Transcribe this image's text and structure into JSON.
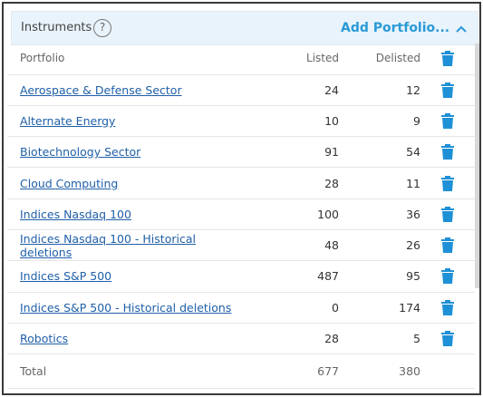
{
  "header": {
    "title": "Instruments",
    "help": "?",
    "add_label": "Add Portfolio..."
  },
  "table": {
    "columns": {
      "portfolio": "Portfolio",
      "listed": "Listed",
      "delisted": "Delisted"
    },
    "rows": [
      {
        "name": "Aerospace & Defense Sector",
        "listed": "24",
        "delisted": "12"
      },
      {
        "name": "Alternate Energy",
        "listed": "10",
        "delisted": "9"
      },
      {
        "name": "Biotechnology Sector",
        "listed": "91",
        "delisted": "54"
      },
      {
        "name": "Cloud Computing",
        "listed": "28",
        "delisted": "11"
      },
      {
        "name": "Indices Nasdaq 100",
        "listed": "100",
        "delisted": "36"
      },
      {
        "name": "Indices Nasdaq 100 - Historical deletions",
        "listed": "48",
        "delisted": "26"
      },
      {
        "name": "Indices S&P 500",
        "listed": "487",
        "delisted": "95"
      },
      {
        "name": "Indices S&P 500 - Historical deletions",
        "listed": "0",
        "delisted": "174"
      },
      {
        "name": "Robotics",
        "listed": "28",
        "delisted": "5"
      }
    ],
    "total": {
      "label": "Total",
      "listed": "677",
      "delisted": "380"
    }
  },
  "colors": {
    "accent": "#2a9ad6",
    "link": "#1f5fa8",
    "trash": "#1e90d6"
  },
  "icons": {
    "help": "question-circle-icon",
    "collapse": "chevron-up-icon",
    "delete": "trash-icon"
  }
}
